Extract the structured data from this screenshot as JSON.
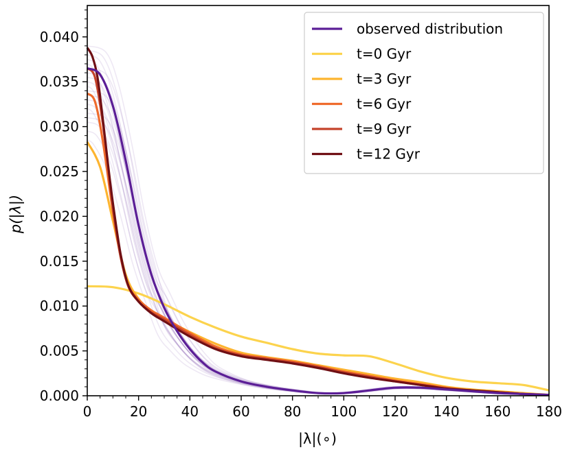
{
  "chart_data": {
    "type": "line",
    "title": "",
    "xlabel": "|λ|(∘)",
    "ylabel": "p(|λ|)",
    "xlim": [
      0,
      180
    ],
    "ylim": [
      0,
      0.0435
    ],
    "xticks": [
      0,
      20,
      40,
      60,
      80,
      100,
      120,
      140,
      160,
      180
    ],
    "xtick_labels": [
      "0",
      "20",
      "40",
      "60",
      "80",
      "100",
      "120",
      "140",
      "160",
      "180"
    ],
    "yticks": [
      0,
      0.005,
      0.01,
      0.015,
      0.02,
      0.025,
      0.03,
      0.035,
      0.04
    ],
    "ytick_labels": [
      "0.000",
      "0.005",
      "0.010",
      "0.015",
      "0.020",
      "0.025",
      "0.030",
      "0.035",
      "0.040"
    ],
    "legend_position": "top-right",
    "background_curves": {
      "description": "bootstrap realisations of observed distribution",
      "color": "#5b1e96",
      "peaks": [
        0.0285,
        0.0295,
        0.0305,
        0.031,
        0.0315,
        0.032,
        0.0325,
        0.033,
        0.0335,
        0.034,
        0.0345,
        0.035,
        0.0355,
        0.036,
        0.0365,
        0.037,
        0.0375,
        0.038,
        0.0385,
        0.039
      ]
    },
    "series": [
      {
        "name": "observed distribution",
        "color": "#5b1e96",
        "x": [
          0,
          5,
          10,
          15,
          20,
          25,
          30,
          35,
          40,
          45,
          50,
          60,
          70,
          80,
          90,
          100,
          110,
          120,
          130,
          140,
          150,
          160,
          170,
          180
        ],
        "y": [
          0.0365,
          0.0358,
          0.0323,
          0.0262,
          0.019,
          0.0135,
          0.0098,
          0.0072,
          0.0052,
          0.0037,
          0.0027,
          0.0016,
          0.001,
          0.0006,
          0.0003,
          0.0003,
          0.0006,
          0.0009,
          0.0009,
          0.0007,
          0.0005,
          0.0003,
          0.0002,
          0.0001
        ]
      },
      {
        "name": "t=0 Gyr",
        "color": "#fcd34d",
        "x": [
          0,
          10,
          20,
          30,
          40,
          50,
          60,
          70,
          80,
          90,
          100,
          110,
          120,
          130,
          140,
          150,
          160,
          170,
          180
        ],
        "y": [
          0.0122,
          0.0121,
          0.0114,
          0.0102,
          0.0088,
          0.0076,
          0.0066,
          0.0059,
          0.0052,
          0.0047,
          0.0045,
          0.0044,
          0.0036,
          0.0027,
          0.002,
          0.0016,
          0.0014,
          0.0012,
          0.0006
        ]
      },
      {
        "name": "t=3 Gyr",
        "color": "#fdb42f",
        "x": [
          0,
          5,
          10,
          15,
          20,
          25,
          30,
          40,
          50,
          60,
          70,
          80,
          90,
          100,
          110,
          120,
          130,
          140,
          150,
          160,
          170,
          180
        ],
        "y": [
          0.0283,
          0.0255,
          0.0195,
          0.0135,
          0.0108,
          0.0095,
          0.0086,
          0.0071,
          0.0058,
          0.0048,
          0.0043,
          0.0039,
          0.0034,
          0.0029,
          0.0024,
          0.0019,
          0.0015,
          0.001,
          0.0007,
          0.0005,
          0.0003,
          0.0001
        ]
      },
      {
        "name": "t=6 Gyr",
        "color": "#ef6b2c",
        "x": [
          0,
          3,
          6,
          10,
          13,
          16,
          20,
          25,
          30,
          40,
          50,
          60,
          70,
          80,
          90,
          100,
          110,
          120,
          130,
          140,
          150,
          160,
          170,
          180
        ],
        "y": [
          0.0337,
          0.0328,
          0.0285,
          0.0205,
          0.0155,
          0.0123,
          0.0107,
          0.0095,
          0.0087,
          0.007,
          0.0055,
          0.0046,
          0.0042,
          0.0038,
          0.0033,
          0.0027,
          0.0022,
          0.0017,
          0.0013,
          0.0009,
          0.0006,
          0.0004,
          0.0002,
          0.0001
        ]
      },
      {
        "name": "t=9 Gyr",
        "color": "#c4422a",
        "x": [
          0,
          3,
          6,
          10,
          13,
          16,
          20,
          25,
          30,
          40,
          50,
          60,
          70,
          80,
          90,
          100,
          110,
          120,
          130,
          140,
          150,
          160,
          170,
          180
        ],
        "y": [
          0.0365,
          0.0355,
          0.0305,
          0.021,
          0.0155,
          0.0122,
          0.0105,
          0.0093,
          0.0085,
          0.0068,
          0.0053,
          0.0045,
          0.0041,
          0.0037,
          0.0032,
          0.0026,
          0.0021,
          0.0016,
          0.0012,
          0.0008,
          0.0006,
          0.0004,
          0.0002,
          0.0001
        ]
      },
      {
        "name": "t=12 Gyr",
        "color": "#6f0f14",
        "x": [
          0,
          2,
          4,
          6,
          8,
          10,
          13,
          16,
          20,
          25,
          30,
          40,
          50,
          60,
          70,
          80,
          90,
          100,
          110,
          120,
          130,
          140,
          150,
          160,
          170,
          180
        ],
        "y": [
          0.0388,
          0.0378,
          0.0355,
          0.031,
          0.026,
          0.0215,
          0.0158,
          0.0123,
          0.0105,
          0.0092,
          0.0083,
          0.0066,
          0.0052,
          0.0044,
          0.004,
          0.0036,
          0.0031,
          0.0025,
          0.002,
          0.0016,
          0.0012,
          0.0008,
          0.0006,
          0.0004,
          0.0002,
          0.0001
        ]
      }
    ]
  }
}
